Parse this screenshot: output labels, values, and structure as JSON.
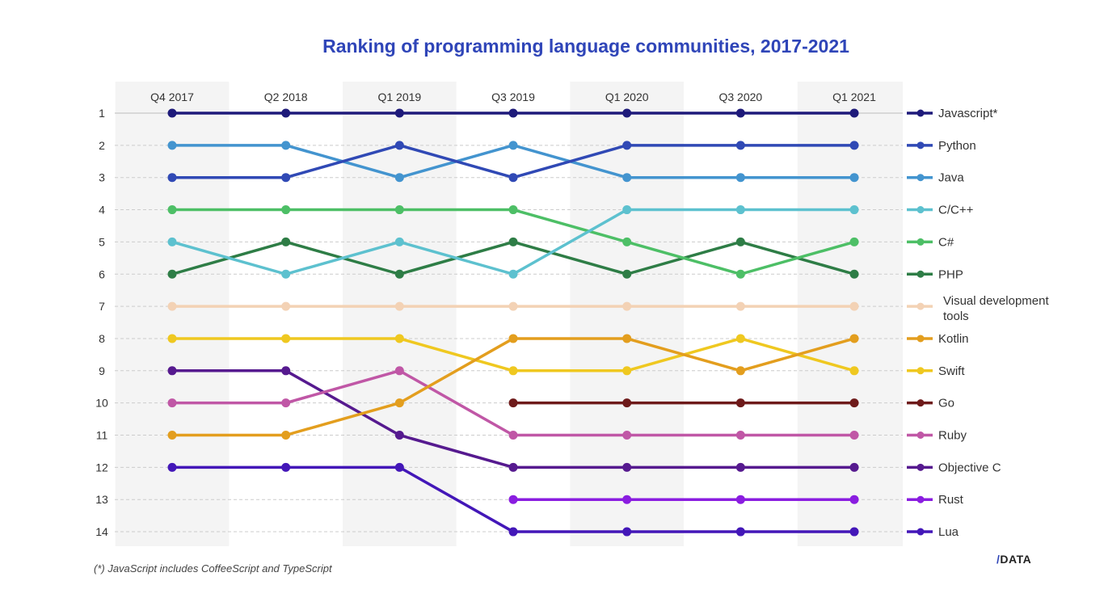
{
  "chart_data": {
    "type": "line",
    "title": "Ranking of programming language communities, 2017-2021",
    "xlabel": "",
    "ylabel": "",
    "categories": [
      "Q4 2017",
      "Q2 2018",
      "Q1 2019",
      "Q3 2019",
      "Q1 2020",
      "Q3 2020",
      "Q1 2021"
    ],
    "y_ticks": [
      "1",
      "2",
      "3",
      "4",
      "5",
      "6",
      "7",
      "8",
      "9",
      "10",
      "11",
      "12",
      "13",
      "14"
    ],
    "ylim": [
      1,
      14
    ],
    "y_inverted": true,
    "grid": true,
    "legend_placement": "right",
    "series": [
      {
        "name": "Javascript*",
        "color": "#1e1a7a",
        "values": [
          1,
          1,
          1,
          1,
          1,
          1,
          1
        ]
      },
      {
        "name": "Python",
        "color": "#3049b5",
        "values": [
          3,
          3,
          2,
          3,
          2,
          2,
          2
        ]
      },
      {
        "name": "Java",
        "color": "#4394cf",
        "values": [
          2,
          2,
          3,
          2,
          3,
          3,
          3
        ]
      },
      {
        "name": "C/C++",
        "color": "#5dc1cf",
        "values": [
          5,
          6,
          5,
          6,
          4,
          4,
          4
        ]
      },
      {
        "name": "C#",
        "color": "#4dbf66",
        "values": [
          4,
          4,
          4,
          4,
          5,
          6,
          5
        ]
      },
      {
        "name": "PHP",
        "color": "#2e7d46",
        "values": [
          6,
          5,
          6,
          5,
          6,
          5,
          6
        ]
      },
      {
        "name": "Visual development tools",
        "color": "#f3d2b5",
        "values": [
          7,
          7,
          7,
          7,
          7,
          7,
          7
        ]
      },
      {
        "name": "Kotlin",
        "color": "#e39e1e",
        "values": [
          11,
          11,
          10,
          8,
          8,
          9,
          8
        ]
      },
      {
        "name": "Swift",
        "color": "#efc820",
        "values": [
          8,
          8,
          8,
          9,
          9,
          8,
          9
        ]
      },
      {
        "name": "Go",
        "color": "#6e1a1a",
        "values": [
          null,
          null,
          null,
          10,
          10,
          10,
          10
        ]
      },
      {
        "name": "Ruby",
        "color": "#c057a6",
        "values": [
          10,
          10,
          9,
          11,
          11,
          11,
          11
        ]
      },
      {
        "name": "Objective C",
        "color": "#561a8f",
        "values": [
          9,
          9,
          11,
          12,
          12,
          12,
          12
        ]
      },
      {
        "name": "Rust",
        "color": "#8a1de0",
        "values": [
          null,
          null,
          null,
          13,
          13,
          13,
          13
        ]
      },
      {
        "name": "Lua",
        "color": "#4317b8",
        "values": [
          12,
          12,
          12,
          14,
          14,
          14,
          14
        ]
      }
    ]
  },
  "footnote": "(*) JavaScript includes CoffeeScript and TypeScript",
  "logo": {
    "slash": "/",
    "text": "DATA"
  }
}
